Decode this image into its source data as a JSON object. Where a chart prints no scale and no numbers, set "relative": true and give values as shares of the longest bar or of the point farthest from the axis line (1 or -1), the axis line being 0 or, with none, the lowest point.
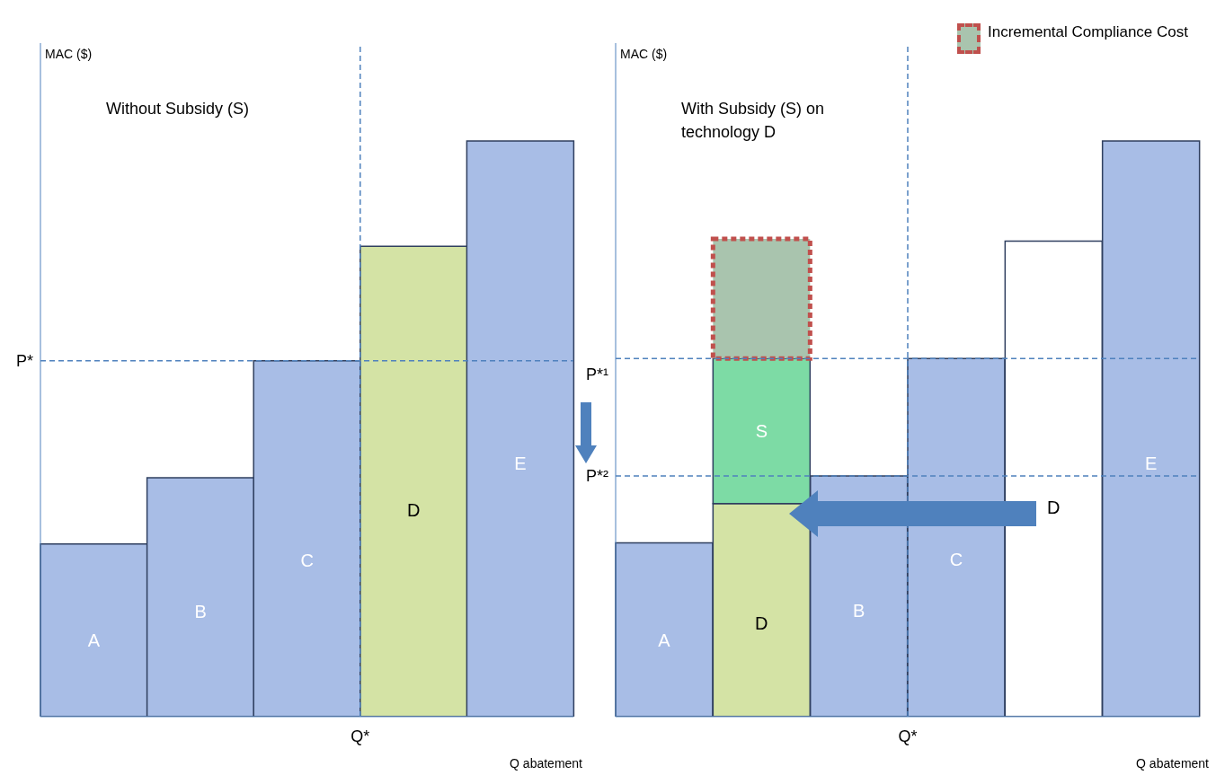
{
  "chart_data": [
    {
      "type": "bar",
      "relative": true,
      "ylabel": "MAC ($)",
      "xlabel": "Q abatement",
      "categories": [
        "A",
        "B",
        "C",
        "D",
        "E"
      ],
      "values": [
        0.3,
        0.415,
        0.618,
        0.817,
        1
      ],
      "colors": [
        "#a8bde6",
        "#a8bde6",
        "#a8bde6",
        "#d4e3a5",
        "#a8bde6"
      ],
      "annotations": [
        "Without Subsidy (S)"
      ],
      "ref_lines": [
        {
          "axis": "y",
          "value": 0.618,
          "label": "P*",
          "color": "#4f81bd",
          "line_style": "dashed"
        },
        {
          "axis": "x",
          "value": "D",
          "label": "Q*",
          "color": "#4f81bd",
          "line_style": "dashed"
        }
      ],
      "grid": false,
      "legend": false
    },
    {
      "type": "bar",
      "relative": true,
      "stacked": true,
      "ylabel": "MAC ($)",
      "xlabel": "Q abatement",
      "categories": [
        "A",
        "D",
        "B",
        "C",
        "D",
        "E"
      ],
      "annotations": [
        "With Subsidy (S) on technology D"
      ],
      "series": [
        {
          "values": [
            0.302,
            0.37,
            0.418,
            0.622,
            0.826,
            1
          ],
          "colors": [
            "#a8bde6",
            "#d4e3a5",
            "#a8bde6",
            "#a8bde6",
            "#ffffff",
            "#a8bde6"
          ]
        },
        {
          "name": "S",
          "color": "#7ddba5",
          "values": [
            null,
            0.252,
            null,
            null,
            null,
            null
          ]
        },
        {
          "name": "Incremental Compliance Cost",
          "color": "#a9c4ae",
          "line_style": "dashed",
          "values": [
            null,
            0.208,
            null,
            null,
            null,
            null
          ]
        }
      ],
      "ref_lines": [
        {
          "axis": "y",
          "value": 0.622,
          "label": "P*¹",
          "color": "#4f81bd",
          "line_style": "dashed"
        },
        {
          "axis": "y",
          "value": 0.418,
          "label": "P*²",
          "color": "#4f81bd",
          "line_style": "dashed"
        },
        {
          "axis": "x",
          "value": "C",
          "label": "Q*",
          "color": "#4f81bd",
          "line_style": "dashed"
        }
      ],
      "grid": false,
      "legend": "top right"
    }
  ]
}
